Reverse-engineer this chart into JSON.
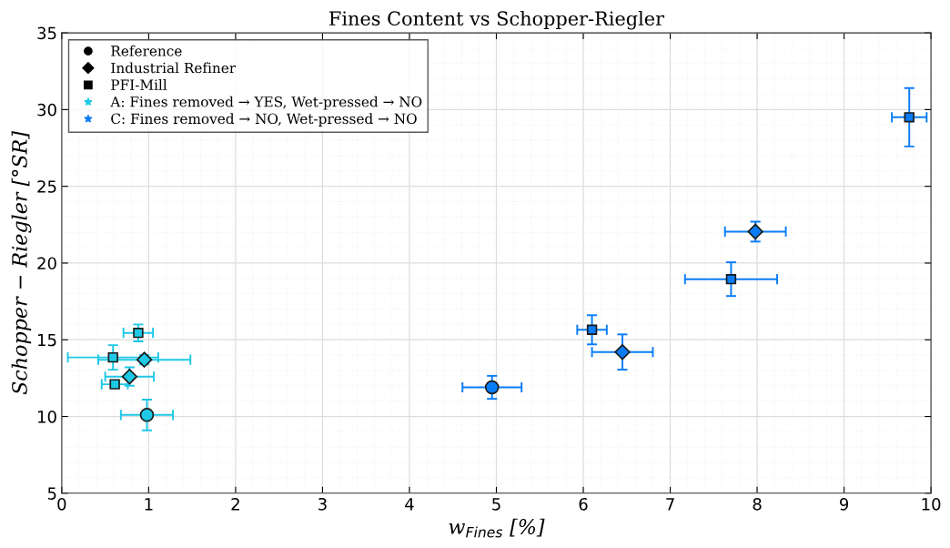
{
  "chart_data": {
    "type": "scatter",
    "title": "Fines Content vs Schopper-Riegler",
    "xlabel": "w$_{Fines}$ [%]",
    "ylabel": "Schopper − Riegler [°SR]",
    "xlim": [
      0,
      10
    ],
    "xticks": [
      0,
      1,
      2,
      3,
      4,
      5,
      6,
      7,
      8,
      9,
      10
    ],
    "ylim": [
      5,
      35
    ],
    "yticks": [
      5,
      10,
      15,
      20,
      25,
      30,
      35
    ],
    "grid": true,
    "legend": "top left",
    "series": [
      {
        "marker": "circle",
        "color": "#1ec8e6",
        "x": [
          0.98
        ],
        "values": [
          10.1
        ],
        "errors": [
          1.0
        ],
        "xerrors": [
          0.3
        ]
      },
      {
        "marker": "diamond",
        "color": "#1ec8e6",
        "x": [
          0.78,
          0.95
        ],
        "values": [
          12.6,
          13.7
        ],
        "errors": [
          0.6,
          0.3
        ],
        "xerrors": [
          0.28,
          0.53
        ]
      },
      {
        "marker": "square",
        "color": "#1ec8e6",
        "x": [
          0.59,
          0.88,
          0.61
        ],
        "values": [
          13.85,
          15.45,
          12.1
        ],
        "errors": [
          0.8,
          0.55,
          0.2
        ],
        "xerrors": [
          0.52,
          0.17,
          0.15
        ]
      },
      {
        "marker": "circle",
        "color": "#0a7cf5",
        "x": [
          4.95
        ],
        "values": [
          11.9
        ],
        "errors": [
          0.75
        ],
        "xerrors": [
          0.34
        ]
      },
      {
        "marker": "diamond",
        "color": "#0a7cf5",
        "x": [
          6.45,
          7.98
        ],
        "values": [
          14.2,
          22.05
        ],
        "errors": [
          1.15,
          0.65
        ],
        "xerrors": [
          0.35,
          0.35
        ]
      },
      {
        "marker": "square",
        "color": "#0a7cf5",
        "x": [
          6.1,
          7.7,
          9.75
        ],
        "values": [
          15.65,
          18.95,
          29.5
        ],
        "errors": [
          0.95,
          1.1,
          1.9
        ],
        "xerrors": [
          0.17,
          0.53,
          0.2
        ]
      },
      {
        "name": "Reference",
        "marker": "circle",
        "color": "#000000"
      },
      {
        "name": "Industrial Refiner",
        "marker": "diamond",
        "color": "#000000"
      },
      {
        "name": "PFI-Mill",
        "marker": "square",
        "color": "#000000"
      },
      {
        "name": "A: Fines removed → YES, Wet-pressed → NO",
        "marker": "star",
        "color": "#1ec8e6"
      },
      {
        "name": "C: Fines removed → NO, Wet-pressed → NO",
        "marker": "star",
        "color": "#0a7cf5"
      }
    ]
  }
}
